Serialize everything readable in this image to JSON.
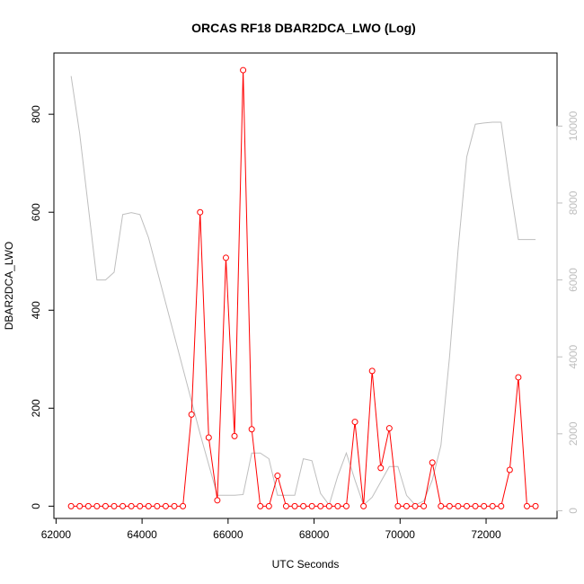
{
  "chart_data": {
    "type": "line",
    "title": "ORCAS RF18 DBAR2DCA_LWO (Log)",
    "xlabel": "UTC Seconds",
    "ylabel": "DBAR2DCA_LWO",
    "xlim": [
      61950,
      73650
    ],
    "ylim": [
      -25,
      925
    ],
    "y2lim": [
      -200,
      11900
    ],
    "x_ticks": [
      62000,
      64000,
      66000,
      68000,
      70000,
      72000
    ],
    "x_tick_labels": [
      "62000",
      "64000",
      "66000",
      "68000",
      "70000",
      "72000"
    ],
    "y_ticks": [
      0,
      200,
      400,
      600,
      800
    ],
    "y_tick_labels": [
      "0",
      "200",
      "400",
      "600",
      "800"
    ],
    "y2_ticks": [
      0,
      2000,
      4000,
      6000,
      8000,
      10000
    ],
    "y2_tick_labels": [
      "0",
      "2000",
      "4000",
      "6000",
      "8000",
      "10000"
    ],
    "grid": false,
    "colors": {
      "primary": "#ff0000",
      "secondary": "#bebebe"
    },
    "series": [
      {
        "axis": "left",
        "style": "line+points",
        "x": [
          62350,
          62550,
          62750,
          62950,
          63150,
          63350,
          63550,
          63750,
          63950,
          64150,
          64350,
          64550,
          64750,
          64950,
          65150,
          65350,
          65550,
          65750,
          65950,
          66150,
          66350,
          66550,
          66750,
          66950,
          67150,
          67350,
          67550,
          67750,
          67950,
          68150,
          68350,
          68550,
          68750,
          68950,
          69150,
          69350,
          69550,
          69750,
          69950,
          70150,
          70350,
          70550,
          70750,
          70950,
          71150,
          71350,
          71550,
          71750,
          71950,
          72150,
          72350,
          72550,
          72750,
          72950,
          73150
        ],
        "values": [
          0,
          0,
          0,
          0,
          0,
          0,
          0,
          0,
          0,
          0,
          0,
          0,
          0,
          0,
          187,
          600,
          140,
          12,
          507,
          143,
          890,
          157,
          0,
          0,
          62,
          0,
          0,
          0,
          0,
          0,
          0,
          0,
          0,
          172,
          0,
          276,
          78,
          159,
          0,
          0,
          0,
          0,
          89,
          0,
          0,
          0,
          0,
          0,
          0,
          0,
          0,
          74,
          263,
          0,
          0
        ]
      },
      {
        "axis": "right",
        "style": "line",
        "x": [
          62350,
          62550,
          62950,
          63150,
          63350,
          63550,
          63750,
          63950,
          64150,
          64550,
          64950,
          65350,
          65750,
          66150,
          66350,
          66550,
          66750,
          66950,
          67150,
          67350,
          67550,
          67750,
          67950,
          68150,
          68350,
          68550,
          68750,
          68950,
          69150,
          69350,
          69550,
          69750,
          69950,
          70150,
          70350,
          70550,
          70750,
          70950,
          71150,
          71350,
          71550,
          71750,
          71950,
          72150,
          72350,
          72550,
          72750,
          72950,
          73150
        ],
        "values": [
          11300,
          9800,
          6000,
          6000,
          6200,
          7700,
          7750,
          7700,
          7100,
          5400,
          3700,
          2000,
          400,
          400,
          420,
          1500,
          1500,
          1350,
          400,
          400,
          400,
          1350,
          1300,
          450,
          150,
          900,
          1500,
          800,
          150,
          350,
          750,
          1150,
          1150,
          400,
          150,
          250,
          800,
          1700,
          4000,
          6800,
          9200,
          10050,
          10080,
          10100,
          10100,
          8500,
          7050,
          7050,
          7050
        ]
      }
    ]
  }
}
